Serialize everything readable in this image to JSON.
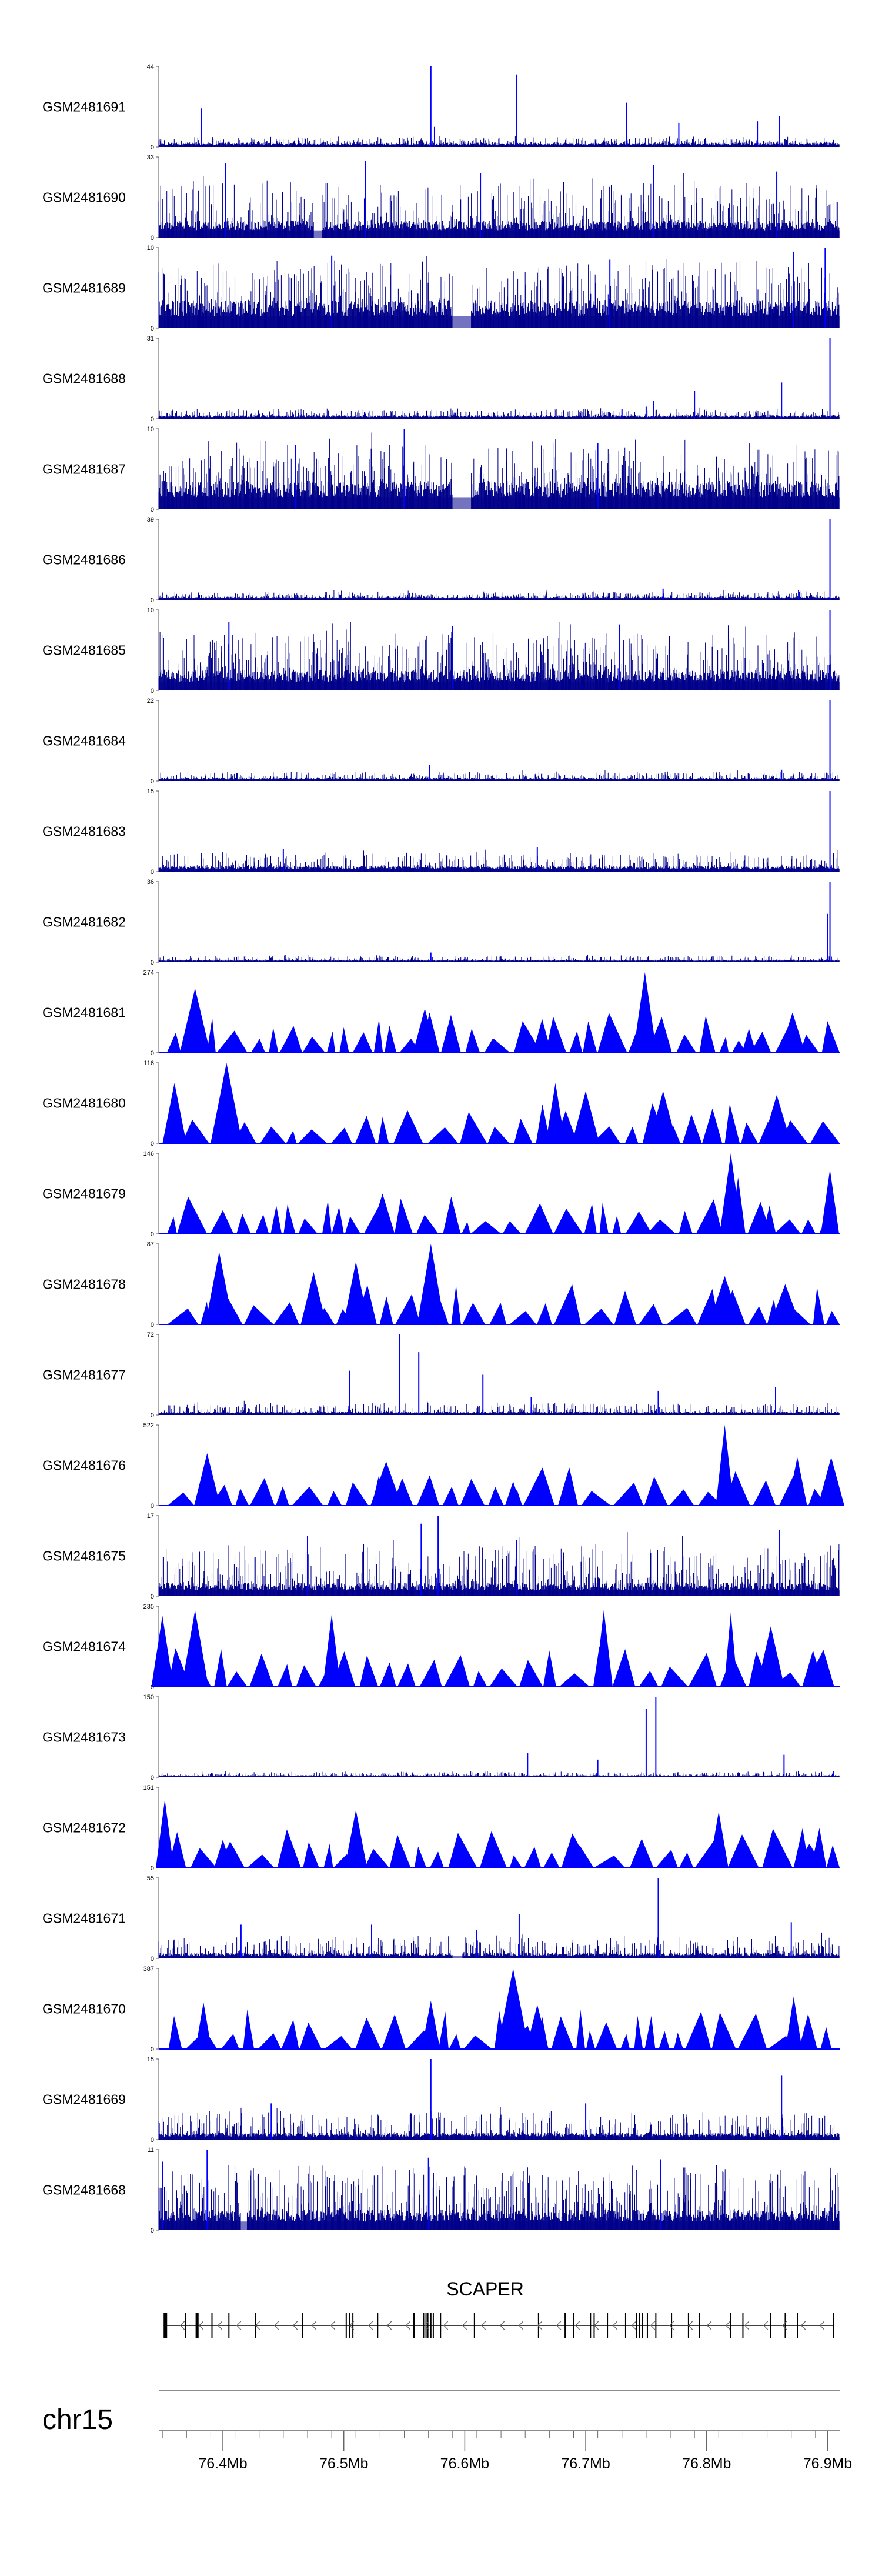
{
  "chart_data": {
    "type": "area",
    "chromosome": "chr15",
    "gene": {
      "name": "SCAPER",
      "strand": "-",
      "start": 76.351,
      "end": 76.905,
      "exons": [
        76.352,
        76.3525,
        76.353,
        76.369,
        76.378,
        76.3785,
        76.391,
        76.405,
        76.427,
        76.466,
        76.502,
        76.505,
        76.5075,
        76.528,
        76.558,
        76.566,
        76.568,
        76.5695,
        76.572,
        76.574,
        76.58,
        76.608,
        76.661,
        76.683,
        76.69,
        76.704,
        76.707,
        76.718,
        76.733,
        76.742,
        76.7445,
        76.747,
        76.751,
        76.758,
        76.771,
        76.785,
        76.794,
        76.82,
        76.83,
        76.853,
        76.865,
        76.875,
        76.905
      ]
    },
    "x_axis": {
      "range": [
        76.347,
        76.91
      ],
      "ticks": [
        76.4,
        76.5,
        76.6,
        76.7,
        76.8,
        76.9
      ],
      "tick_labels": [
        "76.4Mb",
        "76.5Mb",
        "76.6Mb",
        "76.7Mb",
        "76.8Mb",
        "76.9Mb"
      ]
    },
    "color": "#0000ff",
    "dense_color": "#00008b",
    "tracks": [
      {
        "name": "GSM2481691",
        "style": "dense",
        "ymax": 44,
        "baseline": 0.04,
        "noise": 0.08,
        "seed": 1,
        "gaps": [],
        "peaks": [
          [
            76.382,
            0.48
          ],
          [
            76.572,
            1.0
          ],
          [
            76.575,
            0.25
          ],
          [
            76.643,
            0.9
          ],
          [
            76.734,
            0.55
          ],
          [
            76.777,
            0.3
          ],
          [
            76.842,
            0.32
          ],
          [
            76.86,
            0.38
          ]
        ]
      },
      {
        "name": "GSM2481690",
        "style": "dense",
        "ymax": 33,
        "baseline": 0.15,
        "noise": 0.55,
        "seed": 2,
        "gaps": [
          [
            76.475,
            76.482
          ]
        ],
        "peaks": [
          [
            76.402,
            0.92
          ],
          [
            76.518,
            0.95
          ],
          [
            76.613,
            0.8
          ],
          [
            76.756,
            0.9
          ],
          [
            76.858,
            0.82
          ]
        ]
      },
      {
        "name": "GSM2481689",
        "style": "dense",
        "ymax": 10,
        "baseline": 0.25,
        "noise": 0.55,
        "seed": 3,
        "gaps": [
          [
            76.59,
            76.605
          ]
        ],
        "peaks": [
          [
            76.49,
            0.9
          ],
          [
            76.72,
            0.85
          ],
          [
            76.872,
            0.95
          ],
          [
            76.898,
            1.0
          ]
        ]
      },
      {
        "name": "GSM2481688",
        "style": "dense",
        "ymax": 31,
        "baseline": 0.03,
        "noise": 0.09,
        "seed": 4,
        "gaps": [],
        "peaks": [
          [
            76.73,
            0.12
          ],
          [
            76.75,
            0.15
          ],
          [
            76.756,
            0.22
          ],
          [
            76.79,
            0.35
          ],
          [
            76.862,
            0.45
          ],
          [
            76.902,
            1.0
          ]
        ]
      },
      {
        "name": "GSM2481687",
        "style": "dense",
        "ymax": 10,
        "baseline": 0.25,
        "noise": 0.55,
        "seed": 5,
        "gaps": [
          [
            76.59,
            76.605
          ]
        ],
        "peaks": [
          [
            76.55,
            1.0
          ],
          [
            76.46,
            0.8
          ],
          [
            76.71,
            0.82
          ]
        ]
      },
      {
        "name": "GSM2481686",
        "style": "dense",
        "ymax": 39,
        "baseline": 0.03,
        "noise": 0.07,
        "seed": 6,
        "gaps": [],
        "peaks": [
          [
            76.764,
            0.14
          ],
          [
            76.902,
            1.0
          ],
          [
            76.876,
            0.12
          ]
        ]
      },
      {
        "name": "GSM2481685",
        "style": "dense",
        "ymax": 10,
        "baseline": 0.18,
        "noise": 0.5,
        "seed": 7,
        "gaps": [],
        "peaks": [
          [
            76.405,
            0.85
          ],
          [
            76.59,
            0.8
          ],
          [
            76.728,
            0.82
          ],
          [
            76.902,
            1.0
          ]
        ]
      },
      {
        "name": "GSM2481684",
        "style": "dense",
        "ymax": 22,
        "baseline": 0.03,
        "noise": 0.08,
        "seed": 8,
        "gaps": [],
        "peaks": [
          [
            76.571,
            0.2
          ],
          [
            76.862,
            0.14
          ],
          [
            76.902,
            1.0
          ]
        ]
      },
      {
        "name": "GSM2481683",
        "style": "dense",
        "ymax": 15,
        "baseline": 0.05,
        "noise": 0.18,
        "seed": 9,
        "gaps": [],
        "peaks": [
          [
            76.902,
            1.0
          ],
          [
            76.45,
            0.28
          ],
          [
            76.66,
            0.3
          ]
        ]
      },
      {
        "name": "GSM2481682",
        "style": "dense",
        "ymax": 36,
        "baseline": 0.02,
        "noise": 0.06,
        "seed": 10,
        "gaps": [],
        "peaks": [
          [
            76.572,
            0.12
          ],
          [
            76.902,
            1.0
          ],
          [
            76.9,
            0.6
          ]
        ]
      },
      {
        "name": "GSM2481681",
        "style": "tri",
        "ymax": 274,
        "seed": 11,
        "peaks": [
          [
            76.377,
            0.8
          ],
          [
            76.567,
            0.55
          ],
          [
            76.664,
            0.42
          ],
          [
            76.749,
            1.0
          ],
          [
            76.835,
            0.3
          ],
          [
            76.871,
            0.5
          ]
        ]
      },
      {
        "name": "GSM2481680",
        "style": "tri",
        "ymax": 116,
        "seed": 12,
        "peaks": [
          [
            76.403,
            1.0
          ],
          [
            76.36,
            0.75
          ],
          [
            76.675,
            0.75
          ],
          [
            76.7,
            0.65
          ],
          [
            76.858,
            0.6
          ],
          [
            76.764,
            0.65
          ]
        ]
      },
      {
        "name": "GSM2481679",
        "style": "tri",
        "ymax": 146,
        "seed": 13,
        "peaks": [
          [
            76.532,
            0.5
          ],
          [
            76.82,
            1.0
          ],
          [
            76.826,
            0.7
          ],
          [
            76.902,
            0.8
          ],
          [
            76.744,
            0.28
          ],
          [
            76.852,
            0.35
          ]
        ]
      },
      {
        "name": "GSM2481678",
        "style": "tri",
        "ymax": 87,
        "seed": 14,
        "peaks": [
          [
            76.475,
            0.65
          ],
          [
            76.51,
            0.78
          ],
          [
            76.572,
            1.0
          ],
          [
            76.397,
            0.9
          ],
          [
            76.815,
            0.6
          ],
          [
            76.865,
            0.5
          ]
        ]
      },
      {
        "name": "GSM2481677",
        "style": "dense",
        "ymax": 72,
        "baseline": 0.03,
        "noise": 0.12,
        "seed": 15,
        "gaps": [],
        "peaks": [
          [
            76.546,
            1.0
          ],
          [
            76.562,
            0.78
          ],
          [
            76.505,
            0.55
          ],
          [
            76.615,
            0.5
          ],
          [
            76.857,
            0.35
          ],
          [
            76.76,
            0.3
          ],
          [
            76.655,
            0.22
          ]
        ]
      },
      {
        "name": "GSM2481676",
        "style": "tri",
        "ymax": 522,
        "seed": 16,
        "peaks": [
          [
            76.387,
            0.65
          ],
          [
            76.535,
            0.55
          ],
          [
            76.64,
            0.3
          ],
          [
            76.815,
            1.0
          ],
          [
            76.875,
            0.6
          ],
          [
            76.903,
            0.6
          ]
        ]
      },
      {
        "name": "GSM2481675",
        "style": "dense",
        "ymax": 17,
        "baseline": 0.12,
        "noise": 0.5,
        "seed": 17,
        "gaps": [],
        "peaks": [
          [
            76.564,
            0.9
          ],
          [
            76.578,
            1.0
          ],
          [
            76.47,
            0.75
          ],
          [
            76.86,
            0.82
          ],
          [
            76.643,
            0.7
          ]
        ]
      },
      {
        "name": "GSM2481674",
        "style": "tri",
        "ymax": 235,
        "seed": 18,
        "peaks": [
          [
            76.35,
            0.88
          ],
          [
            76.377,
            0.95
          ],
          [
            76.49,
            0.9
          ],
          [
            76.715,
            0.95
          ],
          [
            76.82,
            0.92
          ],
          [
            76.853,
            0.75
          ],
          [
            76.888,
            0.45
          ]
        ]
      },
      {
        "name": "GSM2481673",
        "style": "dense",
        "ymax": 150,
        "baseline": 0.02,
        "noise": 0.05,
        "seed": 19,
        "gaps": [],
        "peaks": [
          [
            76.75,
            0.85
          ],
          [
            76.758,
            1.0
          ],
          [
            76.652,
            0.3
          ],
          [
            76.71,
            0.22
          ],
          [
            76.864,
            0.28
          ],
          [
            76.905,
            0.08
          ]
        ]
      },
      {
        "name": "GSM2481672",
        "style": "tri",
        "ymax": 151,
        "seed": 20,
        "peaks": [
          [
            76.352,
            0.85
          ],
          [
            76.51,
            0.72
          ],
          [
            76.81,
            0.7
          ],
          [
            76.4,
            0.35
          ],
          [
            76.695,
            0.28
          ],
          [
            76.885,
            0.3
          ]
        ]
      },
      {
        "name": "GSM2481671",
        "style": "dense",
        "ymax": 55,
        "baseline": 0.05,
        "noise": 0.22,
        "seed": 21,
        "gaps": [
          [
            76.59,
            76.598
          ]
        ],
        "peaks": [
          [
            76.76,
            1.0
          ],
          [
            76.645,
            0.55
          ],
          [
            76.87,
            0.45
          ],
          [
            76.415,
            0.42
          ],
          [
            76.523,
            0.42
          ],
          [
            76.61,
            0.35
          ]
        ]
      },
      {
        "name": "GSM2481670",
        "style": "tri",
        "ymax": 387,
        "seed": 22,
        "peaks": [
          [
            76.384,
            0.58
          ],
          [
            76.572,
            0.6
          ],
          [
            76.64,
            1.0
          ],
          [
            76.66,
            0.55
          ],
          [
            76.872,
            0.65
          ]
        ]
      },
      {
        "name": "GSM2481669",
        "style": "dense",
        "ymax": 15,
        "baseline": 0.06,
        "noise": 0.28,
        "seed": 23,
        "gaps": [],
        "peaks": [
          [
            76.572,
            1.0
          ],
          [
            76.862,
            0.8
          ],
          [
            76.44,
            0.45
          ],
          [
            76.7,
            0.45
          ]
        ]
      },
      {
        "name": "GSM2481668",
        "style": "dense",
        "ymax": 11,
        "baseline": 0.18,
        "noise": 0.62,
        "seed": 24,
        "gaps": [
          [
            76.415,
            76.42
          ]
        ],
        "peaks": [
          [
            76.387,
            1.0
          ],
          [
            76.57,
            0.9
          ],
          [
            76.762,
            0.88
          ],
          [
            76.35,
            0.85
          ]
        ]
      }
    ]
  }
}
